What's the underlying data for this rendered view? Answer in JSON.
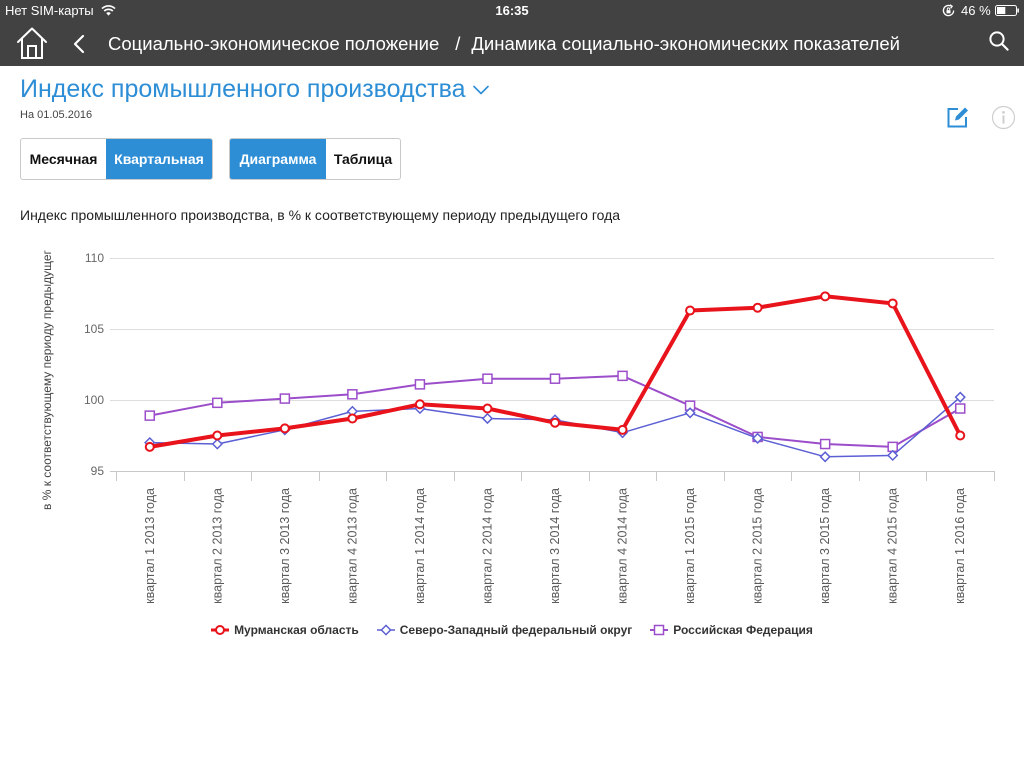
{
  "status_bar": {
    "carrier": "Нет SIM-карты",
    "time": "16:35",
    "battery": "46 %",
    "icons": [
      "wifi-icon",
      "rotation-lock-icon",
      "battery-icon"
    ]
  },
  "nav": {
    "icons": {
      "home": "home-icon",
      "back": "chevron-left-icon",
      "search": "search-icon"
    },
    "breadcrumb": [
      "Социально-экономическое положение",
      "Динамика социально-экономических показателей"
    ],
    "separator": "/"
  },
  "page": {
    "title": "Индекс промышленного производства",
    "title_icon": "chevron-down-icon",
    "date": "На 01.05.2016",
    "actions": {
      "edit": "edit-icon",
      "info": "info-icon"
    }
  },
  "period_toggle": {
    "options": [
      "Месячная",
      "Квартальная"
    ],
    "selected": "Квартальная"
  },
  "view_toggle": {
    "options": [
      "Диаграмма",
      "Таблица"
    ],
    "selected": "Диаграмма"
  },
  "colors": {
    "header_bg": "#424242",
    "accent": "#2d8ed6",
    "text": "#222222"
  },
  "chart_data": {
    "type": "line",
    "title": "Индекс промышленного производства, в % к соответствующему периоду предыдущего года",
    "xlabel": "",
    "ylabel": "в % к соответствующему периоду предыдущег",
    "ylim": [
      95,
      110
    ],
    "yticks": [
      95,
      100,
      105,
      110
    ],
    "grid": true,
    "legend": "bottom-center",
    "categories": [
      "квартал 1 2013 года",
      "квартал 2 2013 года",
      "квартал 3 2013 года",
      "квартал 4 2013 года",
      "квартал 1 2014 года",
      "квартал 2 2014 года",
      "квартал 3 2014 года",
      "квартал 4 2014 года",
      "квартал 1 2015 года",
      "квартал 2 2015 года",
      "квартал 3 2015 года",
      "квартал 4 2015 года",
      "квартал 1 2016 года"
    ],
    "series": [
      {
        "name": "Мурманская область",
        "color": "#e8131b",
        "marker": "circle",
        "values": [
          96.7,
          97.5,
          98.0,
          98.7,
          99.7,
          99.4,
          98.4,
          97.9,
          106.3,
          106.5,
          107.3,
          106.8,
          97.5
        ]
      },
      {
        "name": "Северо-Западный федеральный округ",
        "color": "#5b5fd3",
        "marker": "diamond",
        "values": [
          97.0,
          96.9,
          97.9,
          99.2,
          99.4,
          98.7,
          98.6,
          97.7,
          99.1,
          97.3,
          96.0,
          96.1,
          100.2
        ]
      },
      {
        "name": "Российская Федерация",
        "color": "#9b4dca",
        "marker": "square",
        "values": [
          98.9,
          99.8,
          100.1,
          100.4,
          101.1,
          101.5,
          101.5,
          101.7,
          99.6,
          97.4,
          96.9,
          96.7,
          99.4
        ]
      }
    ]
  }
}
